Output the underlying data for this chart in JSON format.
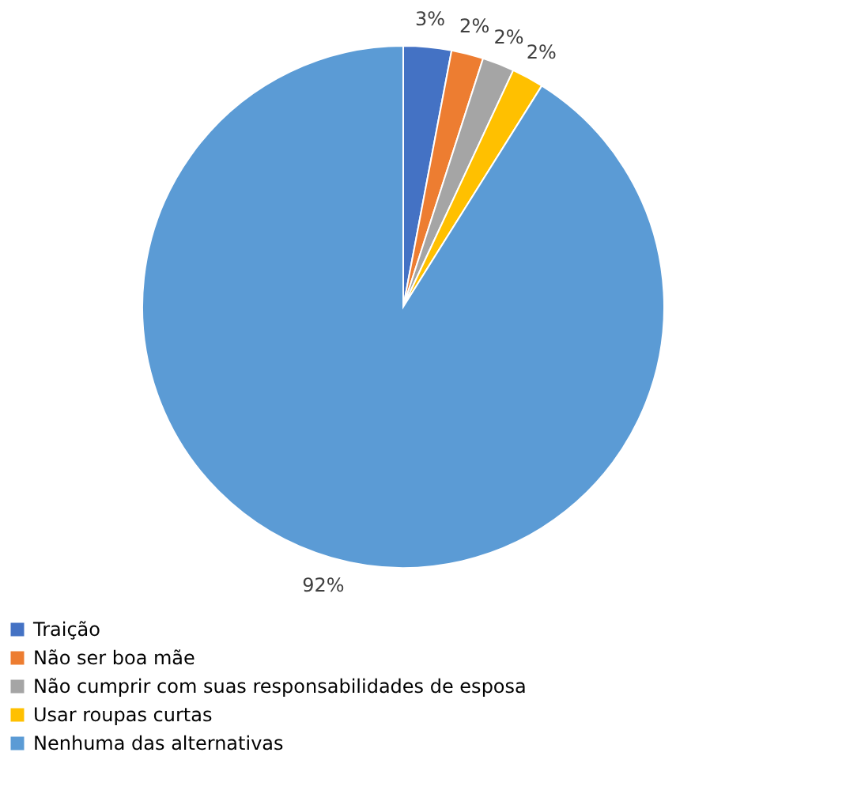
{
  "chart_data": {
    "type": "pie",
    "categories": [
      "Traição",
      "Não ser boa mãe",
      "Não cumprir com suas responsabilidades de esposa",
      "Usar roupas curtas",
      "Nenhuma das alternativas"
    ],
    "values": [
      3,
      2,
      2,
      2,
      92
    ],
    "value_labels": [
      "3%",
      "2%",
      "2%",
      "2%",
      "92%"
    ],
    "colors": [
      "#4472c4",
      "#ed7d31",
      "#a5a5a5",
      "#ffc000",
      "#5b9bd5"
    ],
    "legend": "bottom"
  }
}
